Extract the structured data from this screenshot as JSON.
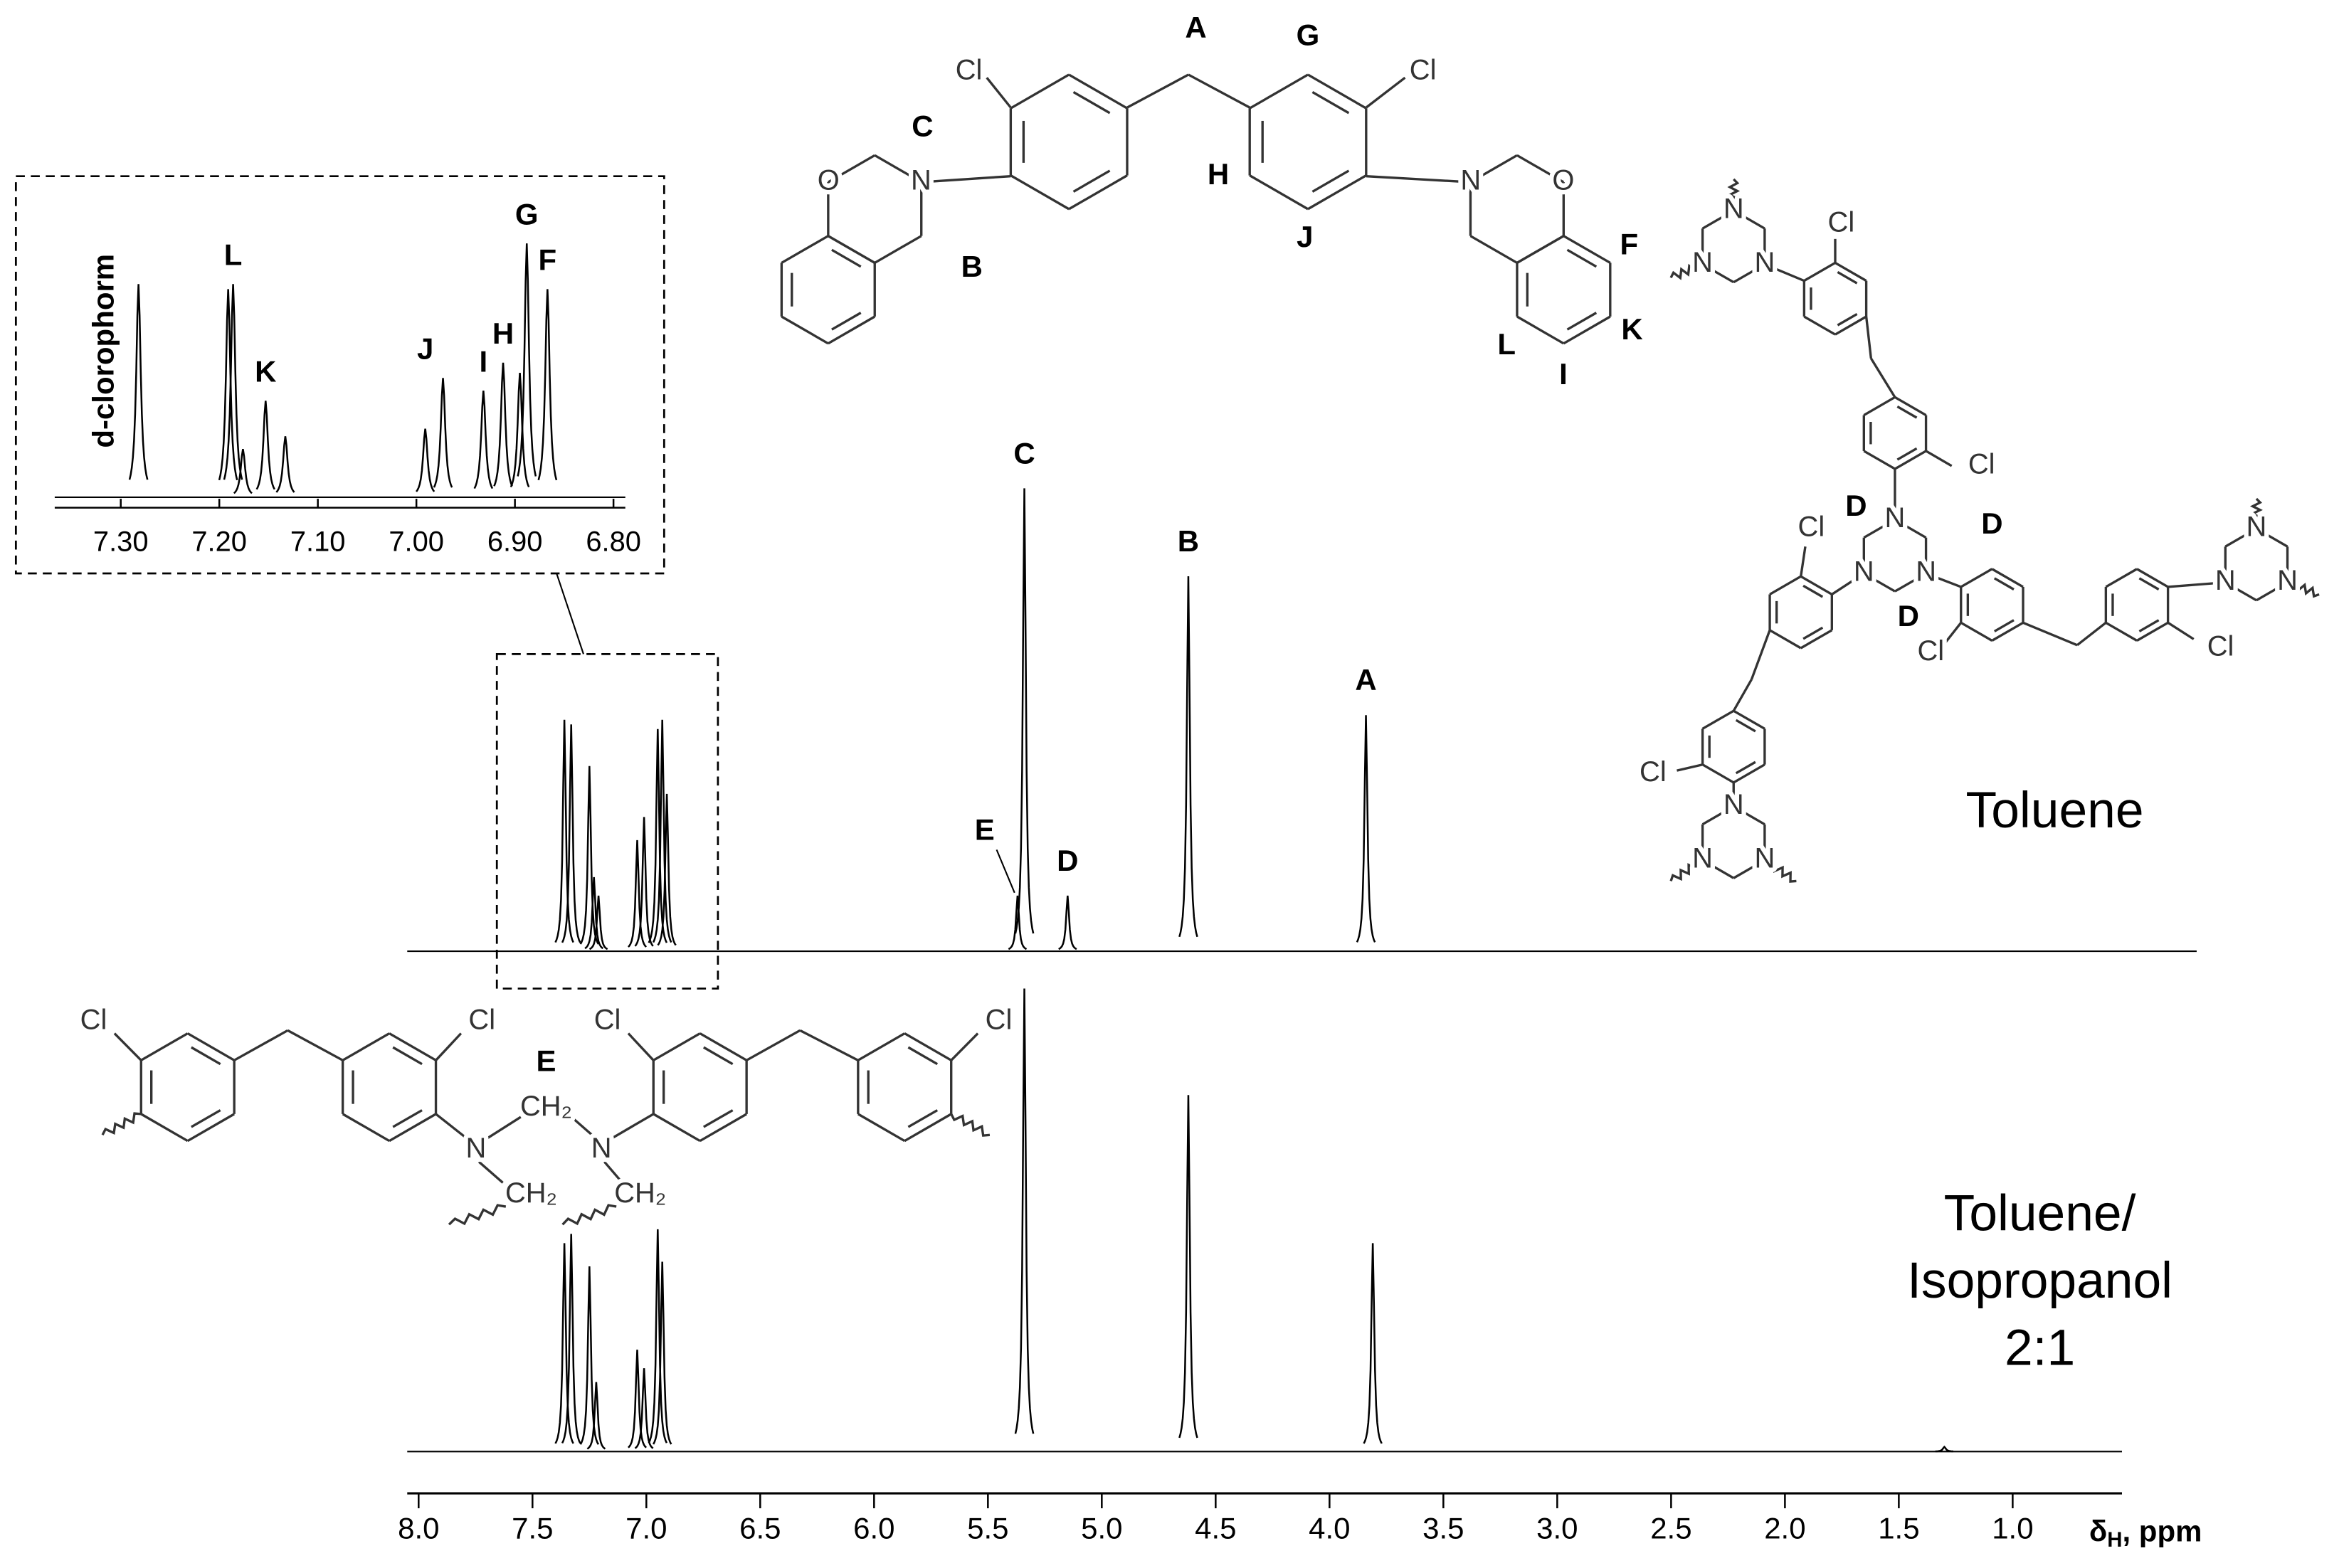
{
  "chart_data": [
    {
      "type": "spectrum",
      "xlim": [
        8.05,
        0.52
      ],
      "xticks": [
        {
          "value": 8,
          "label": "8.0"
        },
        7.5,
        {
          "value": 7,
          "label": "7.0"
        },
        6.5,
        {
          "value": 6,
          "label": "6.0"
        },
        5.5,
        {
          "value": 5,
          "label": "5.0"
        },
        4.5,
        {
          "value": 4,
          "label": "4.0"
        },
        3.5,
        {
          "value": 3,
          "label": "3.0"
        },
        2.5,
        {
          "value": 2,
          "label": "2.0"
        },
        1.5,
        {
          "value": 1,
          "label": "1.0"
        }
      ],
      "x_label": [
        "δ",
        "H",
        ", ppm"
      ],
      "series": [
        {
          "label_lines": [
            "Toluene"
          ],
          "color": "#000000",
          "x": [
            7.36,
            7.33,
            7.25,
            7.23,
            7.21,
            7.04,
            7.01,
            6.95,
            6.93,
            6.91,
            5.37,
            5.34,
            5.15,
            4.62,
            3.84
          ],
          "values": [
            50,
            49,
            40,
            16,
            12,
            24,
            29,
            48,
            50,
            34,
            12,
            100,
            12,
            81,
            51
          ],
          "peak_labels": [
            null,
            null,
            null,
            null,
            null,
            null,
            null,
            null,
            null,
            null,
            "E",
            "C",
            "D",
            "B",
            "A"
          ]
        },
        {
          "label_lines": [
            "Toluene/",
            "Isopropanol",
            "2:1"
          ],
          "color": "#000000",
          "x": [
            7.36,
            7.33,
            7.25,
            7.22,
            7.04,
            7.01,
            6.95,
            6.93,
            5.34,
            4.62,
            3.81,
            1.3
          ],
          "values": [
            45,
            47,
            40,
            15,
            22,
            18,
            48,
            41,
            100,
            77,
            45,
            1
          ],
          "peak_labels": [
            null,
            null,
            null,
            null,
            null,
            null,
            null,
            null,
            null,
            null,
            null,
            null
          ]
        }
      ]
    },
    {
      "type": "spectrum",
      "xlim": [
        7.367,
        6.788
      ],
      "xticks": [
        {
          "value": 7.3,
          "label": "7.30"
        },
        {
          "value": 7.2,
          "label": "7.20"
        },
        {
          "value": 7.1,
          "label": "7.10"
        },
        {
          "value": 7,
          "label": "7.00"
        },
        {
          "value": 6.9,
          "label": "6.90"
        },
        {
          "value": 6.8,
          "label": "6.80"
        }
      ],
      "solvent_label": "d-clorophorm",
      "series": [
        {
          "color": "#000000",
          "x": [
            7.282,
            7.191,
            7.186,
            7.176,
            7.153,
            7.133,
            6.991,
            6.973,
            6.932,
            6.912,
            6.895,
            6.888,
            6.867
          ],
          "values": [
            84,
            82,
            84,
            19,
            38,
            24,
            27,
            47,
            42,
            53,
            49,
            100,
            82
          ],
          "peak_labels": [
            null,
            null,
            "L",
            null,
            "K",
            null,
            "J",
            null,
            "I",
            "H",
            null,
            "G",
            "F"
          ]
        }
      ]
    }
  ],
  "structures": {
    "monomer": {
      "atoms": [
        "Cl",
        "Cl",
        "N",
        "O",
        "N",
        "O"
      ],
      "labels": [
        "A",
        "G",
        "C",
        "H",
        "B",
        "J",
        "F",
        "L",
        "K",
        "I"
      ]
    },
    "triazine_network": {
      "atoms": [
        "N",
        "N",
        "N",
        "N",
        "N",
        "N",
        "N",
        "N",
        "N",
        "N",
        "N",
        "N",
        "Cl",
        "Cl",
        "Cl",
        "Cl",
        "Cl",
        "Cl"
      ],
      "labels": [
        "D",
        "D",
        "D"
      ]
    },
    "aminal_polymer": {
      "atoms": [
        "Cl",
        "Cl",
        "N",
        "CH₂",
        "N",
        "CH₂",
        "CH₂",
        "Cl",
        "Cl"
      ],
      "labels": [
        "E"
      ]
    }
  }
}
